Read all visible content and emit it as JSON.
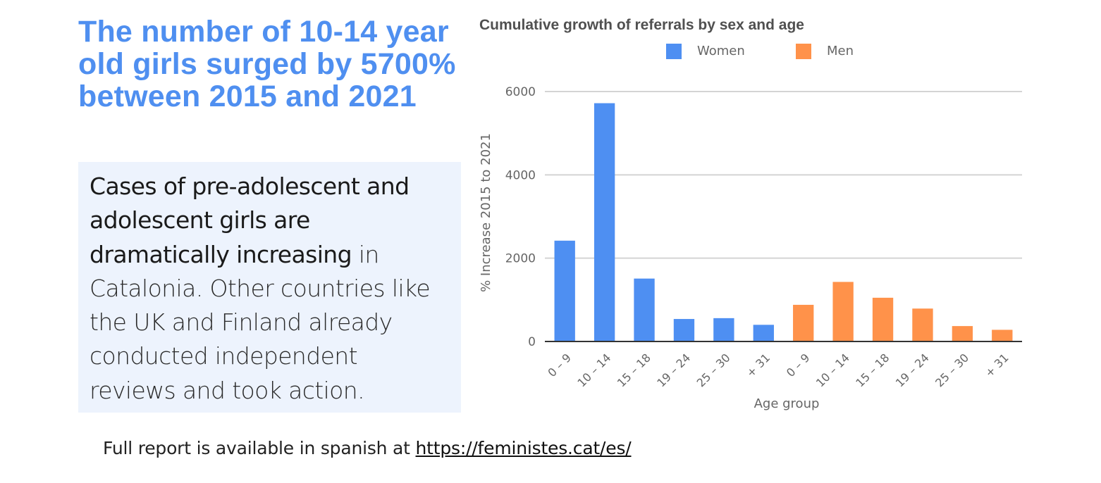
{
  "headline": "The number of 10-14 year old girls surged by 5700% between 2015 and 2021",
  "callout": {
    "strong_text": "Cases of pre-adolescent and adolescent girls are dramatically increasing",
    "rest_text": " in Catalonia. Other countries like the UK and Finland already conducted independent reviews and took action."
  },
  "footer": {
    "prefix": "Full report is available in spanish at ",
    "link_text": "https://feministes.cat/es/"
  },
  "colors": {
    "women": "#4e8ff2",
    "men": "#ff924a",
    "grid": "#d4d4d4",
    "text": "#666666"
  },
  "chart_data": {
    "type": "bar",
    "title": "Cumulative growth of referrals by sex and age",
    "xlabel": "Age group",
    "ylabel": "% Increase 2015 to 2021",
    "ylim": [
      0,
      6000
    ],
    "yticks": [
      0,
      2000,
      4000,
      6000
    ],
    "legend": [
      "Women",
      "Men"
    ],
    "legend_position": "top",
    "categories": [
      "0 – 9",
      "10 – 14",
      "15 – 18",
      "19 – 24",
      "25 – 30",
      "+ 31",
      "0 – 9",
      "10 – 14",
      "15 – 18",
      "19 – 24",
      "25 – 30",
      "+ 31"
    ],
    "series": [
      {
        "name": "Women",
        "values": [
          2420,
          5720,
          1510,
          540,
          560,
          400,
          null,
          null,
          null,
          null,
          null,
          null
        ]
      },
      {
        "name": "Men",
        "values": [
          null,
          null,
          null,
          null,
          null,
          null,
          880,
          1430,
          1050,
          790,
          370,
          280
        ]
      }
    ]
  }
}
